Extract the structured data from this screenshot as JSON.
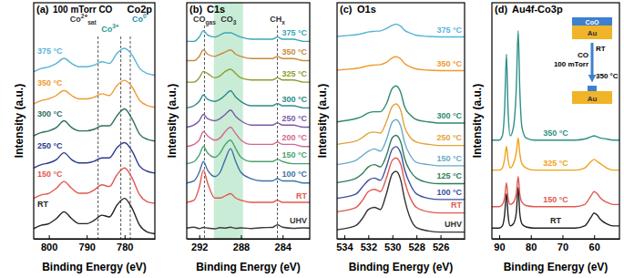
{
  "chart_data": [
    {
      "type": "line",
      "title": "(a)",
      "subtitle": "Co2p",
      "condition": "100 mTorr CO",
      "xlabel": "Binding Energy (eV)",
      "ylabel": "Intensity (a.u.)",
      "xlim": [
        804,
        772
      ],
      "ylim": [
        0,
        140
      ],
      "xticks": [
        800,
        790,
        780
      ],
      "tick_labels": "x",
      "x": [
        804,
        802,
        800,
        798,
        796,
        794,
        792,
        790,
        788,
        786,
        784,
        782,
        780,
        778,
        776,
        774,
        772
      ],
      "series": [
        {
          "name": "RT",
          "color": "#222222",
          "values": [
            6,
            8,
            9,
            12,
            16,
            12,
            9,
            9,
            11,
            14,
            13,
            20,
            24,
            18,
            8,
            4,
            3
          ]
        },
        {
          "name": "150 °C",
          "color": "#e0584f",
          "values": [
            24,
            26,
            27,
            30,
            34,
            30,
            27,
            27,
            29,
            32,
            31,
            38,
            42,
            36,
            26,
            22,
            21
          ]
        },
        {
          "name": "250 °C",
          "color": "#2b3a8f",
          "values": [
            42,
            44,
            45,
            47,
            51,
            47,
            45,
            45,
            46,
            48,
            48,
            54,
            57,
            52,
            43,
            40,
            39
          ]
        },
        {
          "name": "300 °C",
          "color": "#2f6f62",
          "values": [
            61,
            63,
            64,
            66,
            70,
            66,
            64,
            64,
            65,
            67,
            67,
            73,
            77,
            71,
            62,
            59,
            58
          ]
        },
        {
          "name": "350 °C",
          "color": "#ee9a2e",
          "values": [
            80,
            82,
            83,
            85,
            88,
            85,
            83,
            83,
            84,
            86,
            85,
            91,
            94,
            90,
            82,
            79,
            78
          ]
        },
        {
          "name": "375 °C",
          "color": "#57b4d6",
          "values": [
            99,
            101,
            102,
            104,
            107,
            104,
            102,
            102,
            103,
            105,
            104,
            110,
            113,
            109,
            101,
            98,
            97
          ]
        }
      ],
      "vlines": [
        787,
        781,
        778.5
      ],
      "annotations": [
        {
          "text": "Co",
          "sup": "2+",
          "sub": "sat",
          "x": 787,
          "color": "#333333"
        },
        {
          "text": "Co",
          "sup": "3+",
          "x": 781,
          "color": "#2a9d8f"
        },
        {
          "text": "Co",
          "sup": "0",
          "x": 778.5,
          "color": "#2a8fb0"
        }
      ]
    },
    {
      "type": "line",
      "title": "(b)",
      "subtitle": "C1s",
      "xlabel": "Binding Energy (eV)",
      "ylabel": "Intensity (a.u.)",
      "xlim": [
        293.2,
        281.4
      ],
      "ylim": [
        0,
        110
      ],
      "xticks": [
        292,
        288,
        284
      ],
      "tick_labels": "x",
      "x": [
        293.2,
        292.5,
        292,
        291.6,
        291.2,
        290.5,
        290,
        289.5,
        289,
        288.5,
        288,
        287,
        286,
        285,
        284.5,
        284,
        283,
        282,
        281.4
      ],
      "series": [
        {
          "name": "UHV",
          "color": "#3a3a3a",
          "values": [
            5,
            5.4,
            4.8,
            5.3,
            5,
            4.7,
            5.2,
            5,
            5.4,
            4.9,
            5.1,
            4.8,
            5.2,
            5.3,
            6.5,
            5.4,
            4.9,
            5.1,
            5
          ]
        },
        {
          "name": "RT",
          "color": "#e0584f",
          "values": [
            17,
            18,
            24,
            32,
            26,
            19,
            19,
            20,
            21,
            19,
            18,
            17,
            17,
            17,
            18,
            17,
            17,
            17,
            17
          ]
        },
        {
          "name": "100 °C",
          "color": "#3f6fa6",
          "values": [
            26,
            27,
            31,
            36,
            32,
            29,
            31,
            37,
            42,
            36,
            31,
            28,
            27,
            27,
            28,
            27,
            27,
            26,
            26
          ]
        },
        {
          "name": "150 °C",
          "color": "#4aa36c",
          "values": [
            35,
            36,
            39,
            43,
            40,
            38,
            40,
            44,
            46,
            42,
            38,
            36,
            36,
            36,
            37,
            36,
            35,
            35,
            35
          ]
        },
        {
          "name": "200 °C",
          "color": "#d1688f",
          "values": [
            43,
            44,
            46,
            50,
            48,
            46,
            47,
            50,
            52,
            49,
            46,
            44,
            44,
            44,
            45,
            44,
            44,
            43,
            43
          ]
        },
        {
          "name": "250 °C",
          "color": "#7a5aa8",
          "values": [
            52,
            53,
            55,
            58,
            56,
            55,
            56,
            58,
            60,
            57,
            55,
            53,
            53,
            53,
            54,
            53,
            53,
            52,
            52
          ]
        },
        {
          "name": "300 °C",
          "color": "#2c8a8a",
          "values": [
            61,
            62,
            64,
            67,
            65,
            64,
            65,
            67,
            69,
            66,
            64,
            62,
            62,
            62,
            63,
            62,
            62,
            61,
            61
          ]
        },
        {
          "name": "325 °C",
          "color": "#8d9c2f",
          "values": [
            73,
            73,
            75,
            78,
            77,
            75,
            76,
            78,
            79,
            77,
            75,
            74,
            74,
            74,
            75,
            74,
            74,
            73,
            73
          ]
        },
        {
          "name": "350 °C",
          "color": "#c98a3a",
          "values": [
            83,
            83,
            85,
            88,
            86,
            85,
            86,
            87,
            88,
            86,
            85,
            84,
            84,
            84,
            85,
            84,
            84,
            83,
            83
          ]
        },
        {
          "name": "375 °C",
          "color": "#3aa6b8",
          "values": [
            92,
            92,
            94,
            97,
            95,
            94,
            95,
            96,
            96,
            95,
            94,
            93,
            93,
            93,
            94,
            93,
            93,
            92,
            92
          ]
        }
      ],
      "vlines": [
        291.5,
        284.5
      ],
      "band": [
        290.6,
        287.8
      ],
      "annotations": [
        {
          "text": "CO",
          "sub": "gas",
          "x": 291.5,
          "color": "#333333"
        },
        {
          "text": "CO",
          "sub": "3",
          "x": 289.2,
          "color": "#333333"
        },
        {
          "text": "CH",
          "sub": "x",
          "x": 284.5,
          "color": "#333333"
        }
      ]
    },
    {
      "type": "line",
      "title": "(c)",
      "subtitle": "O1s",
      "xlabel": "Binding Energy (eV)",
      "ylabel": "Intensity (a.u.)",
      "xlim": [
        534.6,
        524
      ],
      "ylim": [
        0,
        105
      ],
      "xticks": [
        534,
        532,
        530,
        528,
        526
      ],
      "tick_labels": "x",
      "x": [
        534.6,
        534,
        533,
        532.5,
        532,
        531.5,
        531,
        530.5,
        530,
        529.7,
        529.3,
        529,
        528.5,
        528,
        527,
        526,
        525,
        524
      ],
      "series": [
        {
          "name": "UHV",
          "color": "#333333",
          "values": [
            4,
            4.5,
            6,
            9,
            13,
            14,
            13,
            20,
            29,
            30,
            26,
            18,
            9,
            5,
            3.5,
            3,
            3,
            3
          ]
        },
        {
          "name": "RT",
          "color": "#e0584f",
          "values": [
            12,
            12.5,
            14,
            17,
            21,
            22,
            21,
            27,
            35,
            36,
            33,
            26,
            18,
            14,
            12,
            11.5,
            11.5,
            11.5
          ]
        },
        {
          "name": "100 °C",
          "color": "#3c4fa0",
          "values": [
            18,
            18.5,
            20,
            23,
            26,
            27,
            26,
            32,
            40,
            41,
            38,
            31,
            24,
            20,
            18,
            17.5,
            17.5,
            17.5
          ]
        },
        {
          "name": "125 °C",
          "color": "#2e7d5a",
          "values": [
            25,
            25.5,
            27,
            29,
            32,
            33,
            32,
            37,
            45,
            46,
            43,
            36,
            30,
            27,
            25,
            24.5,
            24.5,
            24.5
          ]
        },
        {
          "name": "150 °C",
          "color": "#6aa9c9",
          "values": [
            33,
            33.5,
            35,
            37,
            39,
            40,
            39,
            44,
            52,
            53,
            50,
            43,
            37,
            34,
            33,
            32.5,
            32.5,
            32.5
          ]
        },
        {
          "name": "250 °C",
          "color": "#e3a23b",
          "values": [
            42,
            42.5,
            43.5,
            45,
            47,
            47.5,
            47,
            52,
            59,
            60,
            57,
            50,
            45,
            43,
            42,
            41.5,
            41.5,
            41.5
          ]
        },
        {
          "name": "300 °C",
          "color": "#2f8a6e",
          "values": [
            52,
            52.5,
            53.5,
            54.5,
            56,
            56.5,
            56.5,
            60,
            67,
            68,
            65,
            59,
            55,
            53,
            52,
            51.5,
            51.5,
            51.5
          ]
        },
        {
          "name": "350 °C",
          "color": "#ee9a2e",
          "values": [
            75,
            75.3,
            75.8,
            76.3,
            77,
            77.3,
            77.5,
            78.5,
            80.5,
            81,
            80,
            78,
            76.5,
            75.5,
            75,
            74.8,
            74.8,
            74.8
          ]
        },
        {
          "name": "375 °C",
          "color": "#57b4d6",
          "values": [
            90,
            90.3,
            90.8,
            91.3,
            92,
            92.3,
            92.5,
            93.5,
            95,
            95.5,
            94.5,
            92.8,
            91.5,
            90.5,
            90,
            89.8,
            89.8,
            89.8
          ]
        }
      ]
    },
    {
      "type": "line",
      "title": "(d)",
      "subtitle": "Au4f-Co3p",
      "xlabel": "Binding Energy (eV)",
      "ylabel": "Intensity (a.u.)",
      "xlim": [
        92.3,
        52
      ],
      "ylim": [
        0,
        110
      ],
      "xticks": [
        90,
        80,
        70,
        60
      ],
      "tick_labels": "x",
      "x": [
        92.3,
        90,
        89,
        88.3,
        87.7,
        87.2,
        86.5,
        85.5,
        84.6,
        84,
        83.5,
        82.8,
        81.5,
        79,
        75,
        70,
        66,
        63,
        61,
        60,
        59,
        58,
        56,
        54,
        52
      ],
      "series": [
        {
          "name": "RT",
          "color": "#222222",
          "values": [
            5,
            5,
            6,
            11,
            21,
            11,
            6,
            7,
            12,
            24,
            12,
            7,
            5.5,
            5,
            5,
            5,
            5,
            6,
            10,
            12,
            11,
            9,
            7,
            6,
            6
          ]
        },
        {
          "name": "150 °C",
          "color": "#e0584f",
          "values": [
            15,
            15,
            16,
            19,
            26,
            19,
            16,
            17,
            21,
            29,
            21,
            17,
            15.5,
            15,
            15,
            15,
            15,
            16,
            20,
            22,
            21,
            19,
            17,
            16,
            16
          ]
        },
        {
          "name": "325 °C",
          "color": "#f0a21b",
          "values": [
            32,
            32,
            33,
            37,
            43,
            37,
            33,
            35,
            40,
            47,
            40,
            35,
            33,
            32,
            32,
            32,
            32,
            33,
            36,
            37,
            36,
            35,
            33,
            32,
            32
          ]
        },
        {
          "name": "350 °C",
          "color": "#2f8f86",
          "values": [
            46,
            46,
            48,
            60,
            86,
            60,
            48,
            52,
            70,
            97,
            70,
            52,
            47,
            46,
            46,
            46,
            46,
            46.5,
            47.5,
            48,
            47.5,
            47,
            46.5,
            46,
            46
          ]
        }
      ],
      "inset": {
        "before": [
          "CoO",
          "Au"
        ],
        "gas": "CO",
        "pressure": "100 mTorr",
        "start": "RT",
        "end": "350 °C",
        "after": [
          "Au"
        ]
      }
    }
  ]
}
